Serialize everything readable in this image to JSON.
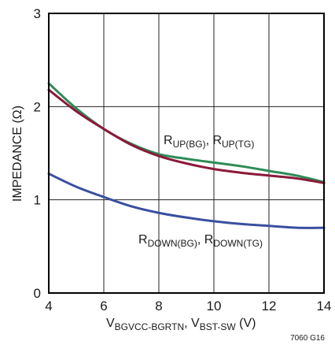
{
  "chart_data": {
    "type": "line",
    "xlabel_parts": [
      "V",
      "BGVCC-BGRTN",
      ", V",
      "BST-SW",
      " (V)"
    ],
    "ylabel": "IMPEDANCE (Ω)",
    "xlim": [
      4,
      14
    ],
    "ylim": [
      0,
      3
    ],
    "x_ticks": [
      "4",
      "6",
      "8",
      "10",
      "12",
      "14"
    ],
    "y_ticks": [
      "0",
      "1",
      "2",
      "3"
    ],
    "grid": true,
    "series": [
      {
        "name_parts": [
          "R",
          "UP(BG)",
          ", R",
          "UP(TG)"
        ],
        "color": "#2e8b57",
        "x": [
          4,
          5,
          6,
          7,
          8,
          9,
          10,
          11,
          12,
          13,
          14
        ],
        "y": [
          2.25,
          1.98,
          1.76,
          1.6,
          1.49,
          1.44,
          1.4,
          1.36,
          1.31,
          1.26,
          1.19
        ]
      },
      {
        "name_parts": [
          "R",
          "UP(BG)",
          ", R",
          "UP(TG)"
        ],
        "color": "#8b1a3a",
        "x": [
          4,
          5,
          6,
          7,
          8,
          9,
          10,
          11,
          12,
          13,
          14
        ],
        "y": [
          2.18,
          1.95,
          1.76,
          1.59,
          1.47,
          1.39,
          1.33,
          1.29,
          1.26,
          1.23,
          1.18
        ]
      },
      {
        "name_parts": [
          "R",
          "DOWN(BG)",
          ", R",
          "DOWN(TG)"
        ],
        "color": "#3a4fa0",
        "x": [
          4,
          5,
          6,
          7,
          8,
          9,
          10,
          11,
          12,
          13,
          14
        ],
        "y": [
          1.28,
          1.14,
          1.03,
          0.93,
          0.86,
          0.81,
          0.77,
          0.74,
          0.72,
          0.7,
          0.7
        ]
      }
    ],
    "figure_id": "7060 G16"
  }
}
